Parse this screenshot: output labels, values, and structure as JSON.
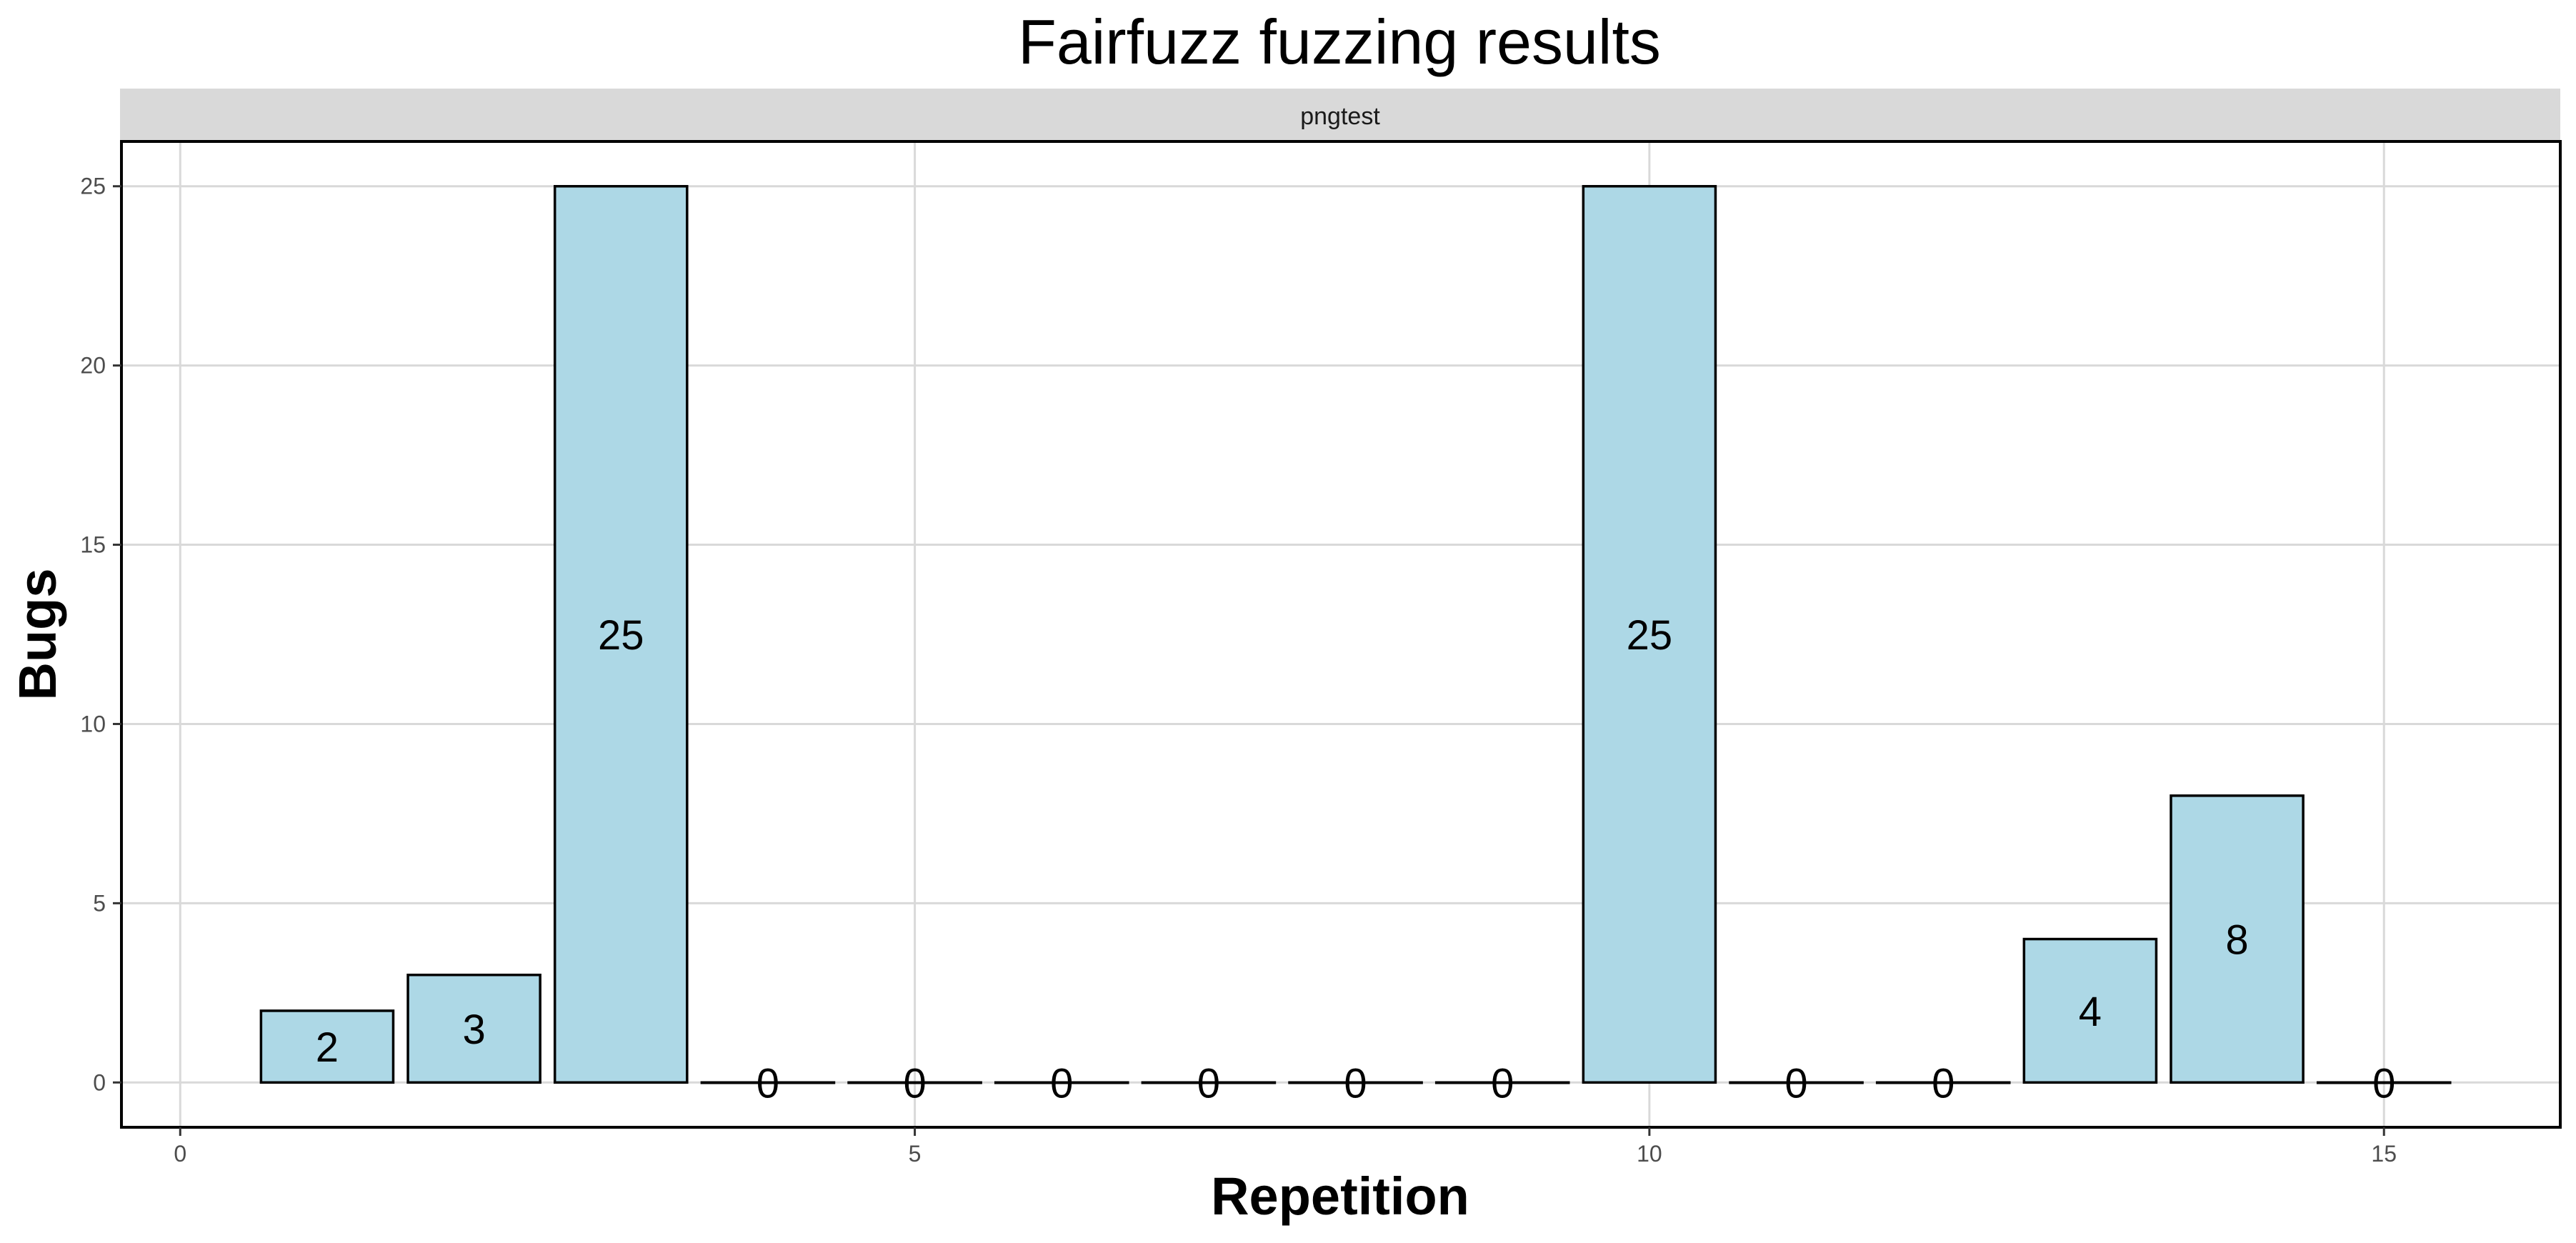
{
  "chart_data": {
    "type": "bar",
    "title": "Fairfuzz fuzzing results",
    "facet": "pngtest",
    "xlabel": "Repetition",
    "ylabel": "Bugs",
    "x": [
      1,
      2,
      3,
      4,
      5,
      6,
      7,
      8,
      9,
      10,
      11,
      12,
      13,
      14,
      15
    ],
    "values": [
      2,
      3,
      25,
      0,
      0,
      0,
      0,
      0,
      0,
      25,
      0,
      0,
      4,
      8,
      0
    ],
    "xlim": [
      -0.4,
      16.2
    ],
    "ylim": [
      -1.25,
      26.25
    ],
    "xticks": [
      0,
      5,
      10,
      15
    ],
    "yticks": [
      0,
      5,
      10,
      15,
      20,
      25
    ],
    "grid": true,
    "bar_fill": "#add8e6",
    "bar_stroke": "#000000",
    "strip_fill": "#d9d9d9",
    "grid_color": "#d9d9d9"
  }
}
